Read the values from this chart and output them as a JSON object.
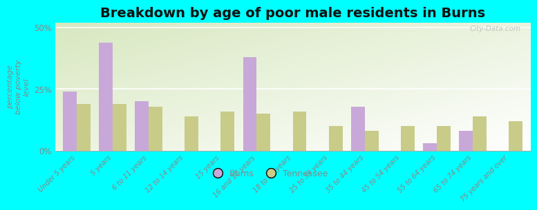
{
  "title": "Breakdown by age of poor male residents in Burns",
  "categories": [
    "Under 5 years",
    "5 years",
    "6 to 11 years",
    "12 to 14 years",
    "15 years",
    "16 and 17 years",
    "18 to 24 years",
    "25 to 34 years",
    "35 to 44 years",
    "45 to 54 years",
    "55 to 64 years",
    "65 to 74 years",
    "75 years and over"
  ],
  "burns_values": [
    24,
    44,
    20,
    0,
    0,
    38,
    0,
    0,
    18,
    0,
    3,
    8,
    0
  ],
  "tennessee_values": [
    19,
    19,
    18,
    14,
    16,
    15,
    16,
    10,
    8,
    10,
    10,
    14,
    12
  ],
  "burns_color": "#c8a8d8",
  "tennessee_color": "#c8cc88",
  "background_color": "#00ffff",
  "plot_bg_top_left": "#d8e8c0",
  "plot_bg_right": "#f8faf0",
  "ylabel": "percentage\nbelow poverty\nlevel",
  "ylim": [
    0,
    52
  ],
  "yticks": [
    0,
    25,
    50
  ],
  "ytick_labels": [
    "0%",
    "25%",
    "50%"
  ],
  "title_fontsize": 14,
  "legend_labels": [
    "Burns",
    "Tennessee"
  ],
  "watermark": "City-Data.com",
  "bar_width": 0.38,
  "title_color": "#111111",
  "ylabel_color": "#888888",
  "tick_label_color": "#888888",
  "spine_color": "#aaaaaa"
}
